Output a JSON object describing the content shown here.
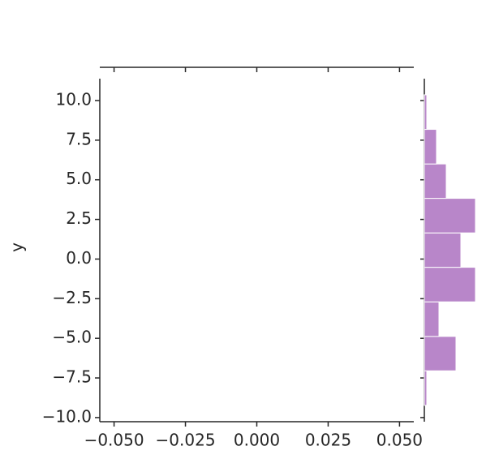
{
  "chart_data": {
    "type": "jointplot",
    "y_label": "y",
    "xlim": [
      -0.055,
      0.055
    ],
    "xticks": [
      {
        "value": -0.05,
        "label": "−0.050"
      },
      {
        "value": -0.025,
        "label": "−0.025"
      },
      {
        "value": 0,
        "label": "0.000"
      },
      {
        "value": 0.025,
        "label": "0.025"
      },
      {
        "value": 0.05,
        "label": "0.050"
      }
    ],
    "ylim": [
      -10.26,
      11.38
    ],
    "yticks": [
      {
        "value": -10,
        "label": "−10.0"
      },
      {
        "value": -7.5,
        "label": "−7.5"
      },
      {
        "value": -5,
        "label": "−5.0"
      },
      {
        "value": -2.5,
        "label": "−2.5"
      },
      {
        "value": 0,
        "label": "0.0"
      },
      {
        "value": 2.5,
        "label": "2.5"
      },
      {
        "value": 5,
        "label": "5.0"
      },
      {
        "value": 7.5,
        "label": "7.5"
      },
      {
        "value": 10,
        "label": "10.0"
      }
    ],
    "y_hist": {
      "bins": [
        -9.23,
        -7.05,
        -4.88,
        -2.7,
        -0.52,
        1.65,
        3.83,
        6.0,
        8.18,
        10.36
      ],
      "counts": [
        1,
        13,
        6,
        21,
        15,
        21,
        9,
        5,
        1
      ],
      "color": "#b886c9",
      "countlim": [
        0,
        22
      ]
    }
  }
}
